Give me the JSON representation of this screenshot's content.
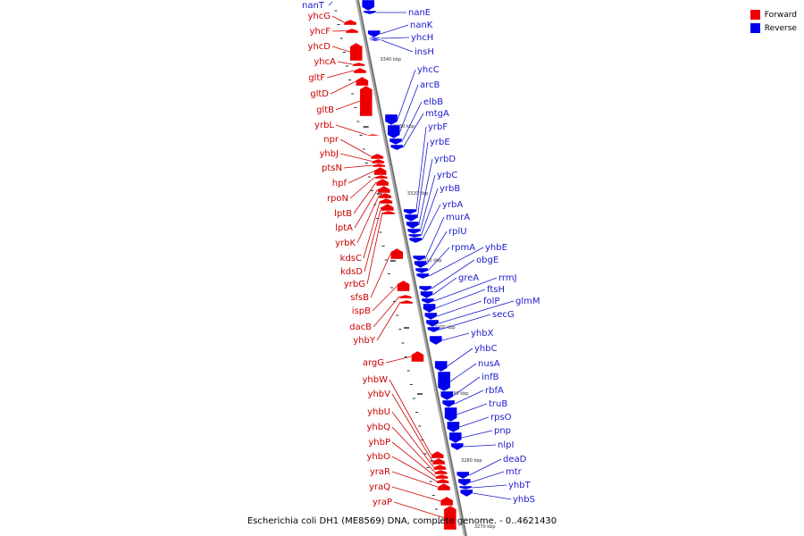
{
  "caption": "Escherichia coli DH1 (ME8569) DNA, complete genome. - 0..4621430",
  "legend": [
    {
      "label": "Forward",
      "color": "#ee0000"
    },
    {
      "label": "Reverse",
      "color": "#0000ee"
    }
  ],
  "colors": {
    "forward": "#ee0000",
    "reverse": "#0000ee",
    "forward_label": "#cc0000",
    "reverse_label": "#1a1acc",
    "axis": "#888888"
  },
  "tick_labels": [
    "3340 kbp",
    "3330 kbp",
    "3320 kbp",
    "3310 kbp",
    "3300 kbp",
    "3290 kbp",
    "3280 kbp",
    "3270 kbp"
  ],
  "forward_genes": [
    "yhcG",
    "yhcF",
    "yhcD",
    "yhcA",
    "gltF",
    "gltD",
    "gltB",
    "yrbL",
    "npr",
    "yhbJ",
    "ptsN",
    "hpf",
    "rpoN",
    "lptB",
    "lptA",
    "yrbK",
    "kdsC",
    "kdsD",
    "yrbG",
    "sfsB",
    "ispB",
    "dacB",
    "yhbY",
    "argG",
    "yhbW",
    "yhbV",
    "yhbU",
    "yhbQ",
    "yhbP",
    "yhbO",
    "yraR",
    "yraQ",
    "yraP"
  ],
  "reverse_genes": [
    "nanT",
    "nanE",
    "nanK",
    "yhcH",
    "insH",
    "yhcC",
    "arcB",
    "elbB",
    "mtgA",
    "yrbF",
    "yrbE",
    "yrbD",
    "yrbC",
    "yrbB",
    "yrbA",
    "murA",
    "rplU",
    "rpmA",
    "yhbE",
    "obgE",
    "greA",
    "rrmJ",
    "ftsH",
    "folP",
    "glmM",
    "secG",
    "yhbX",
    "yhbC",
    "nusA",
    "infB",
    "rbfA",
    "truB",
    "rpsO",
    "pnp",
    "nlpI",
    "deaD",
    "mtr",
    "yhbT",
    "yhbS"
  ]
}
